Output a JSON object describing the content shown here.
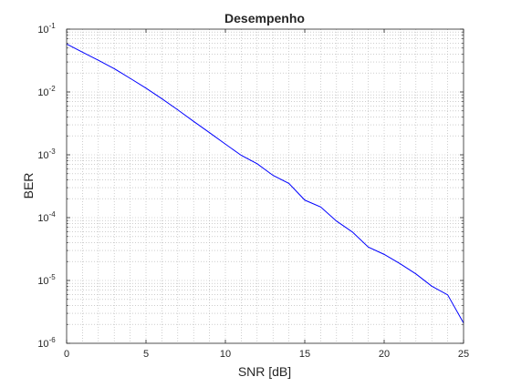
{
  "chart_data": {
    "type": "line",
    "title": "Desempenho",
    "xlabel": "SNR [dB]",
    "ylabel": "BER",
    "xlim": [
      0,
      25
    ],
    "ylim": [
      1e-06,
      0.1
    ],
    "yscale": "log",
    "grid": true,
    "minor_grid": true,
    "line_color": "#0000ff",
    "x_ticks": [
      0,
      5,
      10,
      15,
      20,
      25
    ],
    "y_ticks": [
      {
        "value": 1e-06,
        "base": "10",
        "exp": "-6"
      },
      {
        "value": 1e-05,
        "base": "10",
        "exp": "-5"
      },
      {
        "value": 0.0001,
        "base": "10",
        "exp": "-4"
      },
      {
        "value": 0.001,
        "base": "10",
        "exp": "-3"
      },
      {
        "value": 0.01,
        "base": "10",
        "exp": "-2"
      },
      {
        "value": 0.1,
        "base": "10",
        "exp": "-1"
      }
    ],
    "series": [
      {
        "x": [
          0,
          1,
          2,
          3,
          4,
          5,
          6,
          7,
          8,
          9,
          10,
          11,
          12,
          13,
          14,
          15,
          16,
          17,
          18,
          19,
          20,
          21,
          22,
          23,
          24,
          25
        ],
        "y": [
          0.058,
          0.043,
          0.032,
          0.0235,
          0.0165,
          0.0115,
          0.0078,
          0.0052,
          0.0034,
          0.00225,
          0.00148,
          0.00098,
          0.00072,
          0.00047,
          0.00035,
          0.00019,
          0.000148,
          8.8e-05,
          5.9e-05,
          3.4e-05,
          2.6e-05,
          1.85e-05,
          1.27e-05,
          8.1e-06,
          5.9e-06,
          2.1e-06
        ]
      }
    ]
  }
}
